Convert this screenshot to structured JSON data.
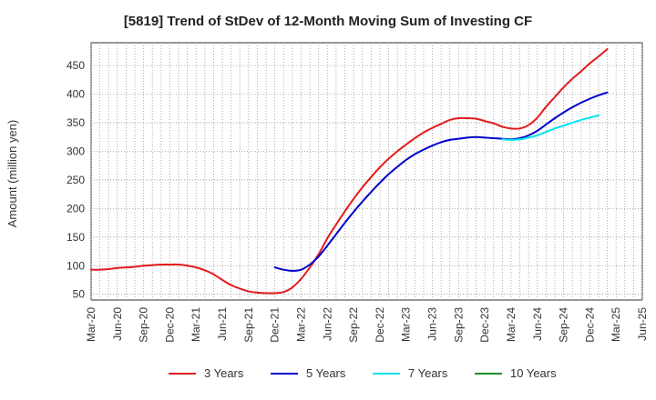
{
  "chart_data": {
    "type": "line",
    "title": "[5819]  Trend of StDev of 12-Month Moving Sum of Investing CF",
    "xlabel": "",
    "ylabel": "Amount (million yen)",
    "x_ticks": [
      "Mar-20",
      "Jun-20",
      "Sep-20",
      "Dec-20",
      "Mar-21",
      "Jun-21",
      "Sep-21",
      "Dec-21",
      "Mar-22",
      "Jun-22",
      "Sep-22",
      "Dec-22",
      "Mar-23",
      "Jun-23",
      "Sep-23",
      "Dec-23",
      "Mar-24",
      "Jun-24",
      "Sep-24",
      "Dec-24",
      "Mar-25",
      "Jun-25"
    ],
    "y_ticks": [
      50,
      100,
      150,
      200,
      250,
      300,
      350,
      400,
      450
    ],
    "ylim": [
      40,
      490
    ],
    "grid": true,
    "legend_position": "bottom",
    "series": [
      {
        "name": "3 Years",
        "color": "#e31a1c",
        "values": [
          [
            "Mar-20",
            93
          ],
          [
            "Apr-20",
            93
          ],
          [
            "May-20",
            94
          ],
          [
            "Jun-20",
            96
          ],
          [
            "Jul-20",
            97
          ],
          [
            "Aug-20",
            98
          ],
          [
            "Sep-20",
            100
          ],
          [
            "Oct-20",
            101
          ],
          [
            "Nov-20",
            102
          ],
          [
            "Dec-20",
            102
          ],
          [
            "Jan-21",
            102
          ],
          [
            "Feb-21",
            100
          ],
          [
            "Mar-21",
            97
          ],
          [
            "Apr-21",
            92
          ],
          [
            "May-21",
            85
          ],
          [
            "Jun-21",
            75
          ],
          [
            "Jul-21",
            66
          ],
          [
            "Aug-21",
            60
          ],
          [
            "Sep-21",
            55
          ],
          [
            "Oct-21",
            53
          ],
          [
            "Nov-21",
            52
          ],
          [
            "Dec-21",
            52
          ],
          [
            "Jan-22",
            54
          ],
          [
            "Feb-22",
            62
          ],
          [
            "Mar-22",
            77
          ],
          [
            "Apr-22",
            97
          ],
          [
            "May-22",
            120
          ],
          [
            "Jun-22",
            148
          ],
          [
            "Jul-22",
            172
          ],
          [
            "Aug-22",
            195
          ],
          [
            "Sep-22",
            217
          ],
          [
            "Oct-22",
            237
          ],
          [
            "Nov-22",
            255
          ],
          [
            "Dec-22",
            272
          ],
          [
            "Jan-23",
            287
          ],
          [
            "Feb-23",
            300
          ],
          [
            "Mar-23",
            312
          ],
          [
            "Apr-23",
            323
          ],
          [
            "May-23",
            333
          ],
          [
            "Jun-23",
            341
          ],
          [
            "Jul-23",
            348
          ],
          [
            "Aug-23",
            355
          ],
          [
            "Sep-23",
            358
          ],
          [
            "Oct-23",
            358
          ],
          [
            "Nov-23",
            357
          ],
          [
            "Dec-23",
            353
          ],
          [
            "Jan-24",
            349
          ],
          [
            "Feb-24",
            343
          ],
          [
            "Mar-24",
            340
          ],
          [
            "Apr-24",
            340
          ],
          [
            "May-24",
            346
          ],
          [
            "Jun-24",
            359
          ],
          [
            "Jul-24",
            378
          ],
          [
            "Aug-24",
            395
          ],
          [
            "Sep-24",
            412
          ],
          [
            "Oct-24",
            427
          ],
          [
            "Nov-24",
            440
          ],
          [
            "Dec-24",
            454
          ],
          [
            "Jan-25",
            466
          ],
          [
            "Feb-25",
            479
          ]
        ]
      },
      {
        "name": "5 Years",
        "color": "#0000cc",
        "values": [
          [
            "Dec-21",
            97
          ],
          [
            "Jan-22",
            93
          ],
          [
            "Feb-22",
            91
          ],
          [
            "Mar-22",
            93
          ],
          [
            "Apr-22",
            102
          ],
          [
            "May-22",
            116
          ],
          [
            "Jun-22",
            135
          ],
          [
            "Jul-22",
            155
          ],
          [
            "Aug-22",
            175
          ],
          [
            "Sep-22",
            194
          ],
          [
            "Oct-22",
            212
          ],
          [
            "Nov-22",
            229
          ],
          [
            "Dec-22",
            245
          ],
          [
            "Jan-23",
            260
          ],
          [
            "Feb-23",
            273
          ],
          [
            "Mar-23",
            285
          ],
          [
            "Apr-23",
            295
          ],
          [
            "May-23",
            303
          ],
          [
            "Jun-23",
            310
          ],
          [
            "Jul-23",
            316
          ],
          [
            "Aug-23",
            320
          ],
          [
            "Sep-23",
            322
          ],
          [
            "Oct-23",
            324
          ],
          [
            "Nov-23",
            325
          ],
          [
            "Dec-23",
            324
          ],
          [
            "Jan-24",
            323
          ],
          [
            "Feb-24",
            322
          ],
          [
            "Mar-24",
            321
          ],
          [
            "Apr-24",
            323
          ],
          [
            "May-24",
            328
          ],
          [
            "Jun-24",
            336
          ],
          [
            "Jul-24",
            347
          ],
          [
            "Aug-24",
            358
          ],
          [
            "Sep-24",
            368
          ],
          [
            "Oct-24",
            377
          ],
          [
            "Nov-24",
            385
          ],
          [
            "Dec-24",
            392
          ],
          [
            "Jan-25",
            398
          ],
          [
            "Feb-25",
            403
          ]
        ]
      },
      {
        "name": "7 Years",
        "color": "#00e5ee",
        "values": [
          [
            "Feb-24",
            321
          ],
          [
            "Mar-24",
            320
          ],
          [
            "Apr-24",
            321
          ],
          [
            "May-24",
            324
          ],
          [
            "Jun-24",
            328
          ],
          [
            "Jul-24",
            334
          ],
          [
            "Aug-24",
            340
          ],
          [
            "Sep-24",
            345
          ],
          [
            "Oct-24",
            350
          ],
          [
            "Nov-24",
            355
          ],
          [
            "Dec-24",
            359
          ],
          [
            "Jan-25",
            363
          ]
        ]
      },
      {
        "name": "10 Years",
        "color": "#228b22",
        "values": []
      }
    ]
  }
}
